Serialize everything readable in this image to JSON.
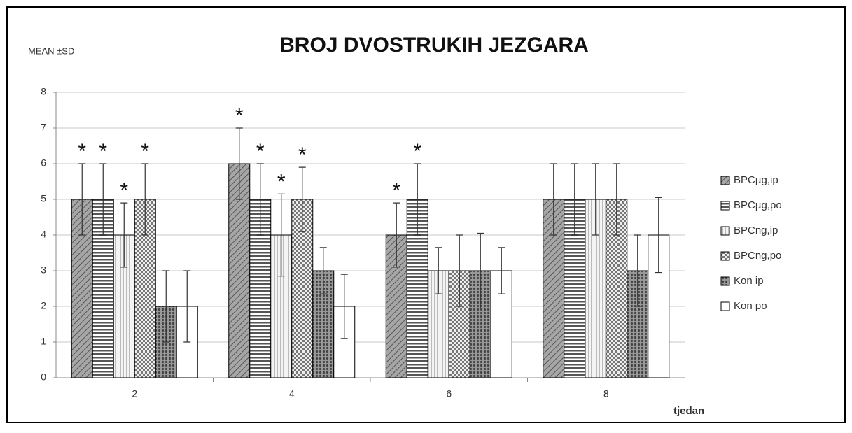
{
  "chart_data": {
    "type": "bar",
    "title": "BROJ DVOSTRUKIH JEZGARA",
    "ylabel": "MEAN ±SD",
    "xlabel": "tjedan",
    "categories": [
      "2",
      "4",
      "6",
      "8"
    ],
    "series": [
      {
        "name": "BPCµg,ip",
        "color": "#7f7f7f",
        "pattern": "diagonal",
        "values": [
          5,
          6,
          4,
          5
        ],
        "errors": [
          1,
          1,
          0.9,
          1
        ],
        "significance": [
          "*",
          "*",
          "*",
          null
        ]
      },
      {
        "name": "BPCµg,po",
        "color": "#7f7f7f",
        "pattern": "horizontal",
        "values": [
          5,
          5,
          5,
          5
        ],
        "errors": [
          1,
          1,
          1,
          1
        ],
        "significance": [
          "*",
          "*",
          "*",
          null
        ]
      },
      {
        "name": "BPCng,ip",
        "color": "#bfbfbf",
        "pattern": "vertical",
        "values": [
          4,
          4,
          3,
          5
        ],
        "errors": [
          0.9,
          1.15,
          0.65,
          1
        ],
        "significance": [
          "*",
          "*",
          null,
          null
        ]
      },
      {
        "name": "BPCng,po",
        "color": "#8c8c8c",
        "pattern": "dotted",
        "values": [
          5,
          5,
          3,
          5
        ],
        "errors": [
          1,
          0.9,
          1,
          1
        ],
        "significance": [
          "*",
          "*",
          null,
          null
        ]
      },
      {
        "name": "Kon ip",
        "color": "#6e6e6e",
        "pattern": "cross",
        "values": [
          2,
          3,
          3,
          3
        ],
        "errors": [
          1,
          0.65,
          1.05,
          1
        ],
        "significance": [
          null,
          null,
          null,
          null
        ]
      },
      {
        "name": "Kon po",
        "color": "#ffffff",
        "pattern": "none",
        "values": [
          2,
          2,
          3,
          4
        ],
        "errors": [
          1,
          0.9,
          0.65,
          1.05
        ],
        "significance": [
          null,
          null,
          null,
          null
        ]
      }
    ],
    "ylim": [
      0,
      8
    ],
    "yticks": [
      0,
      1,
      2,
      3,
      4,
      5,
      6,
      7,
      8
    ],
    "grid": true,
    "legend": "right"
  }
}
